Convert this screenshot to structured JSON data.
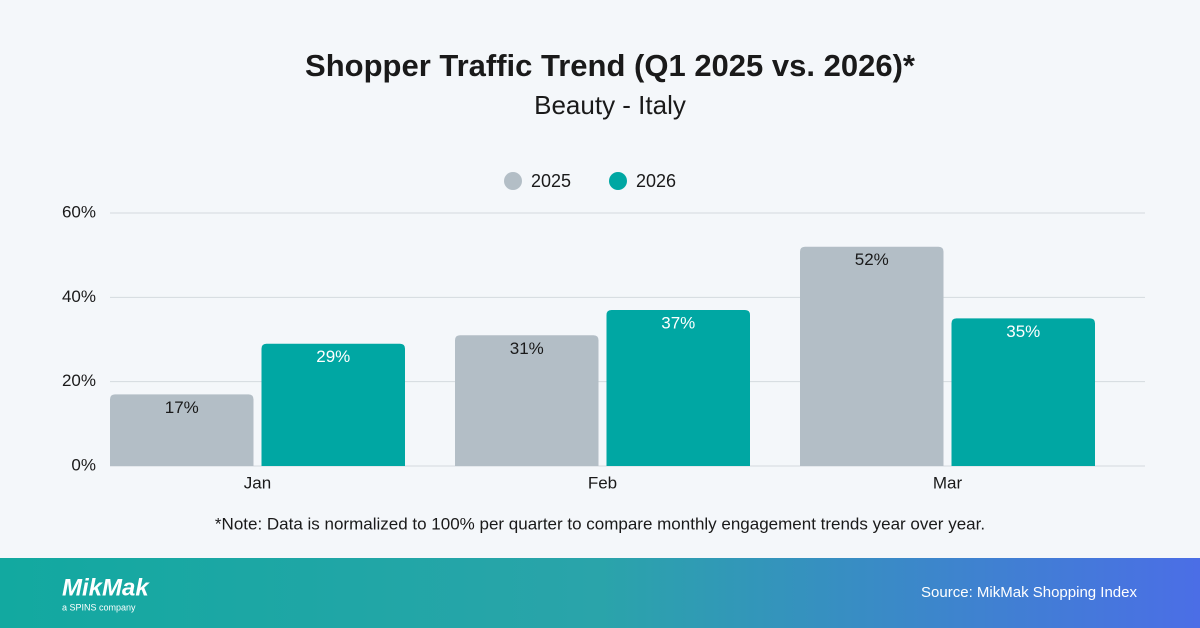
{
  "chart_data": {
    "type": "bar",
    "title": "Shopper Traffic Trend (Q1 2025 vs. 2026)*",
    "subtitle": "Beauty - Italy",
    "categories": [
      "Jan",
      "Feb",
      "Mar"
    ],
    "series": [
      {
        "name": "2025",
        "color": "#b3bec6",
        "label_color": "#1a1a1a",
        "values": [
          17,
          31,
          52
        ],
        "value_labels": [
          "17%",
          "31%",
          "52%"
        ]
      },
      {
        "name": "2026",
        "color": "#00a7a3",
        "label_color": "#ffffff",
        "values": [
          29,
          37,
          35
        ],
        "value_labels": [
          "29%",
          "37%",
          "35%"
        ]
      }
    ],
    "ylim": [
      0,
      60
    ],
    "yticks": [
      {
        "value": 0,
        "label": "0%"
      },
      {
        "value": 20,
        "label": "20%"
      },
      {
        "value": 40,
        "label": "40%"
      },
      {
        "value": 60,
        "label": "60%"
      }
    ],
    "grid": true,
    "legend": "top",
    "note": "*Note: Data is normalized to 100% per quarter to compare monthly engagement trends year over year."
  },
  "footer": {
    "logo": "MikMak",
    "tagline": "a SPINS company",
    "source": "Source: MikMak Shopping Index"
  }
}
